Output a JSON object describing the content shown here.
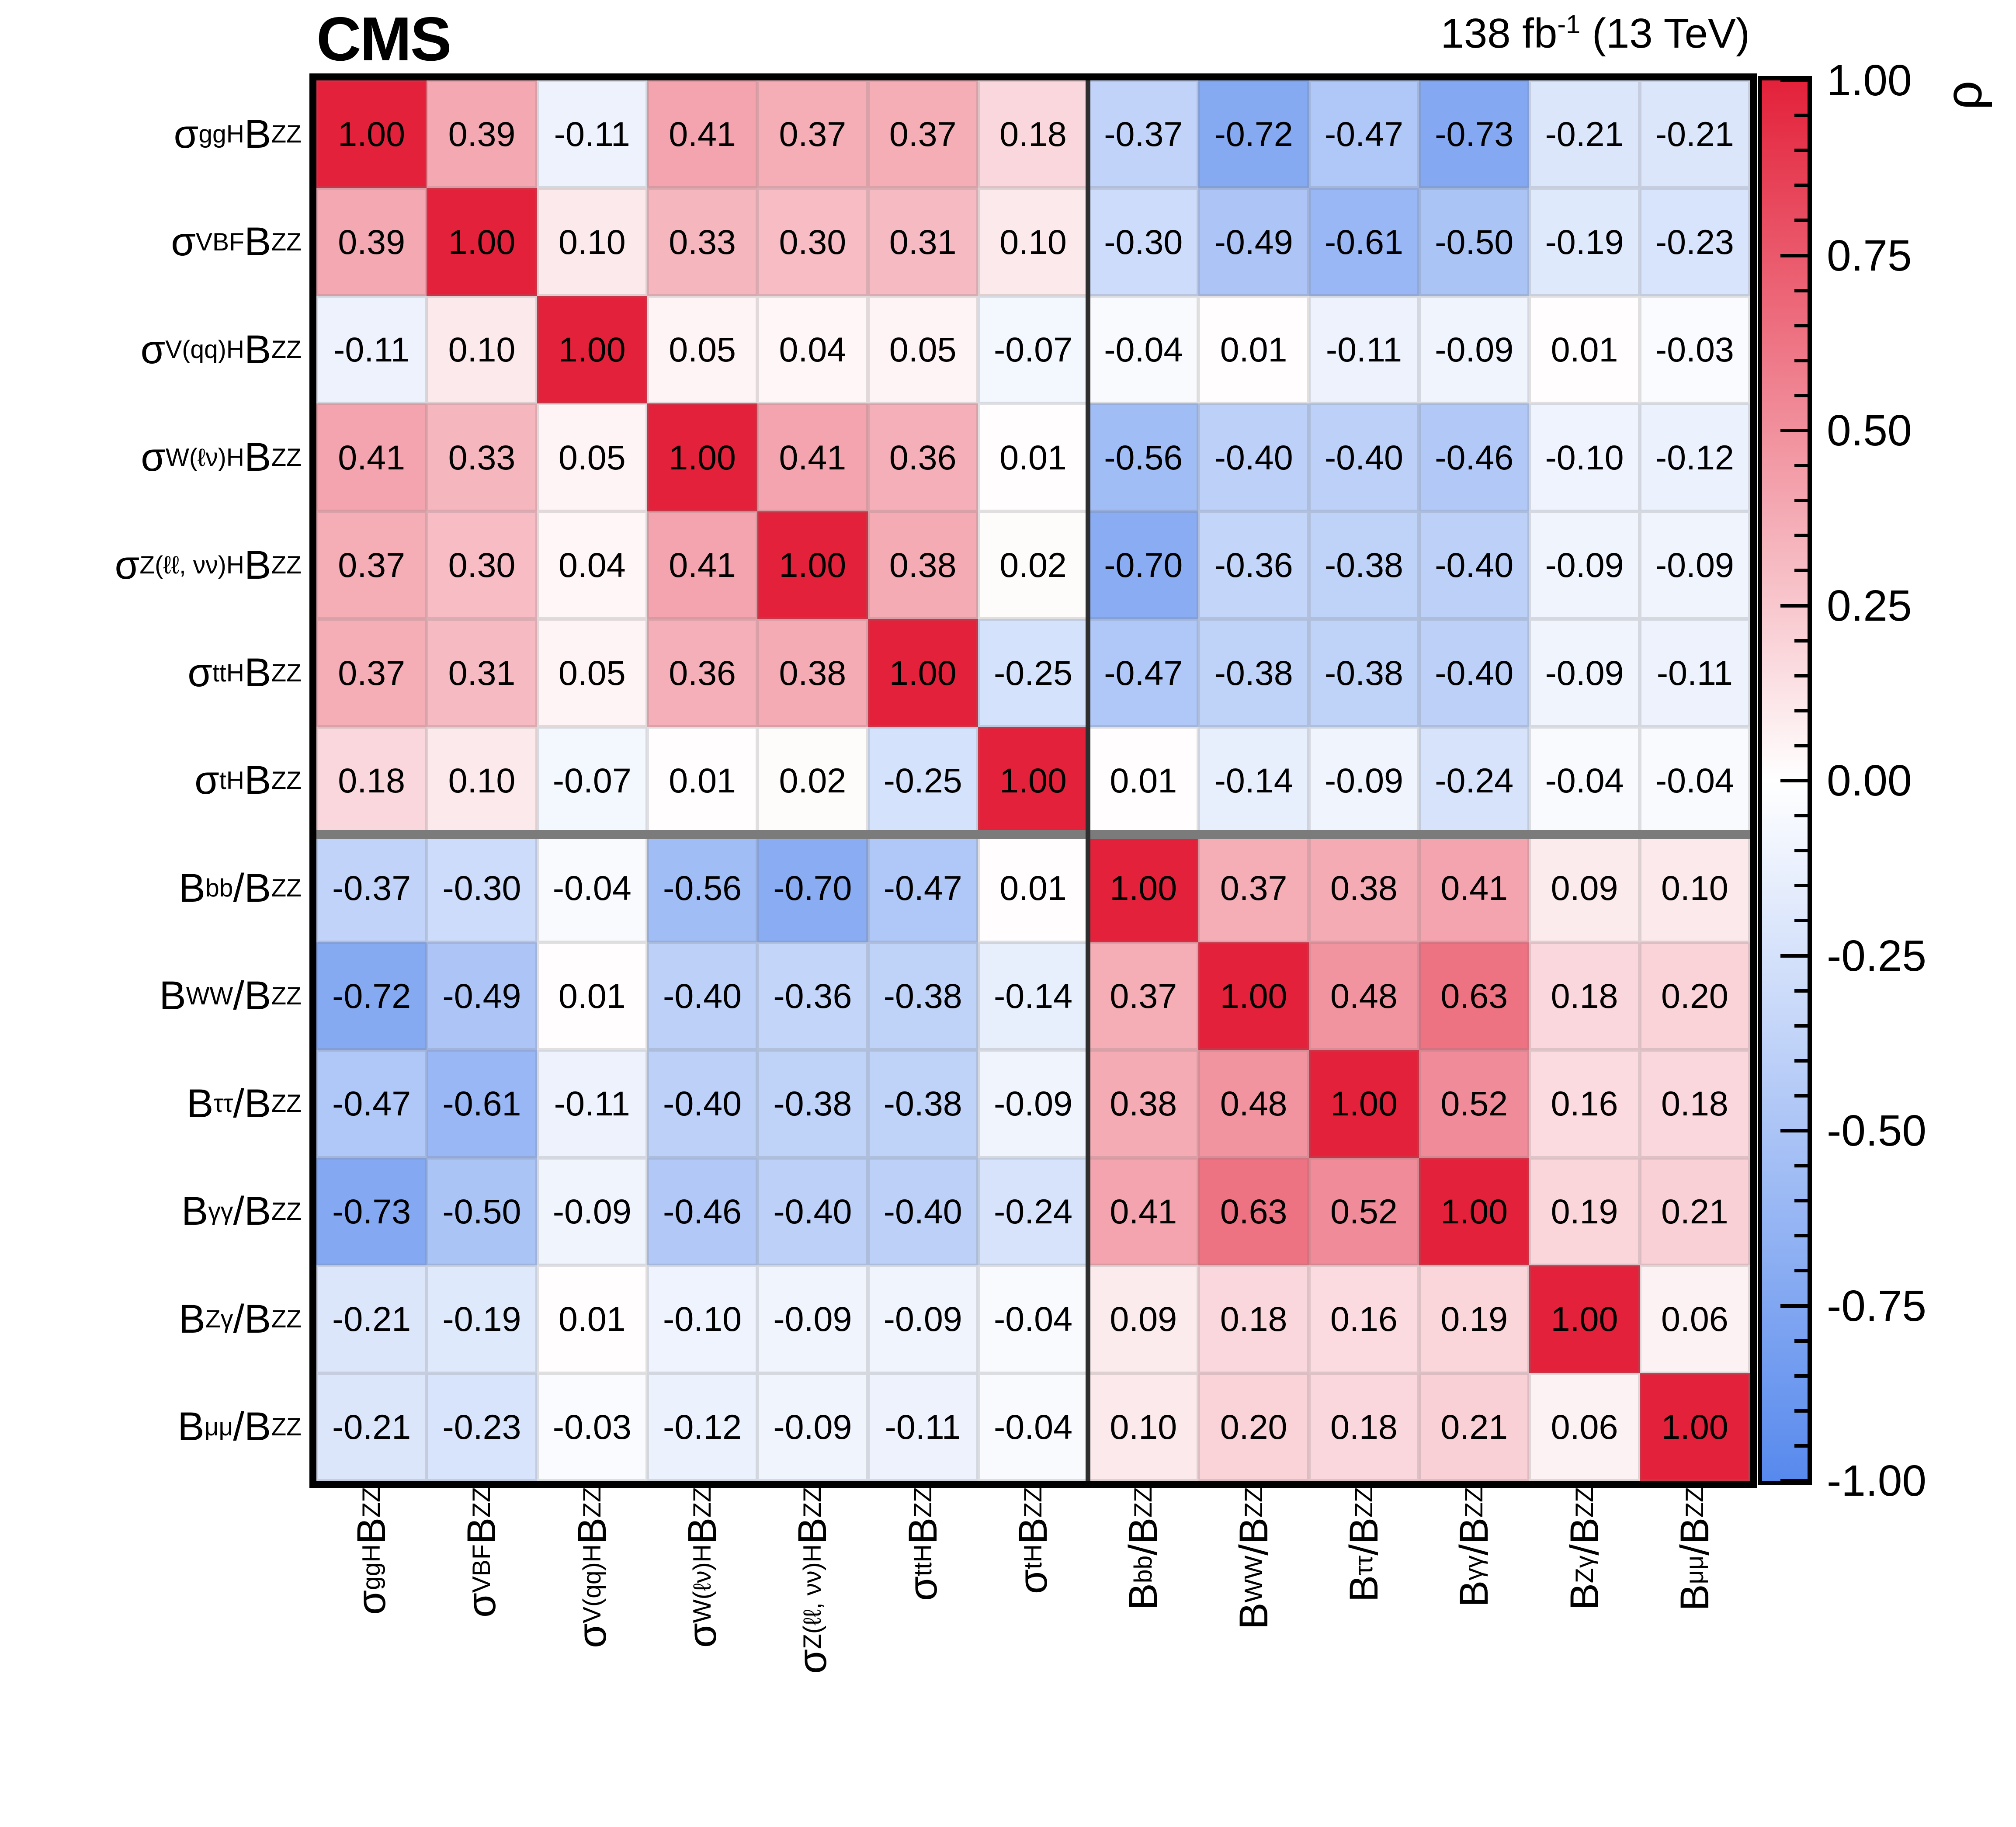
{
  "header": {
    "experiment": "CMS",
    "lumi_segments": [
      {
        "t": "138 fb"
      },
      {
        "t": "-1",
        "sup": true
      },
      {
        "t": " (13 TeV)"
      }
    ],
    "lumi_text": "138 fb^-1 (13 TeV)"
  },
  "colorbar": {
    "label": "ρ",
    "tick_labels": [
      "1.00",
      "0.75",
      "0.50",
      "0.25",
      "0.00",
      "-0.25",
      "-0.50",
      "-0.75",
      "-1.00"
    ],
    "minor_ticks_per_interval": 4,
    "colors": {
      "positive_end": "#e3213a",
      "zero": "#ffffff",
      "negative_end": "#5789ed"
    }
  },
  "chart_data": {
    "type": "heatmap",
    "title": "CMS",
    "subtitle": "138 fb^-1 (13 TeV)",
    "colorbar_label": "ρ",
    "zlim": [
      -1,
      1
    ],
    "grid": true,
    "categories": [
      "σ^{ggH}B^{ZZ}",
      "σ^{VBF}B^{ZZ}",
      "σ^{V(qq)H}B^{ZZ}",
      "σ^{W(ℓν)H}B^{ZZ}",
      "σ^{Z(ℓℓ, νν)H}B^{ZZ}",
      "σ^{ttH}B^{ZZ}",
      "σ^{tH}B^{ZZ}",
      "B^{bb}/B^{ZZ}",
      "B^{WW}/B^{ZZ}",
      "B^{ττ}/B^{ZZ}",
      "B^{γγ}/B^{ZZ}",
      "B^{Zγ}/B^{ZZ}",
      "B^{μμ}/B^{ZZ}"
    ],
    "label_segments": [
      [
        {
          "t": "σ"
        },
        {
          "t": "ggH",
          "sup": true
        },
        {
          "t": "B"
        },
        {
          "t": "ZZ",
          "sup": true
        }
      ],
      [
        {
          "t": "σ"
        },
        {
          "t": "VBF",
          "sup": true
        },
        {
          "t": "B"
        },
        {
          "t": "ZZ",
          "sup": true
        }
      ],
      [
        {
          "t": "σ"
        },
        {
          "t": "V(qq)H",
          "sup": true
        },
        {
          "t": "B"
        },
        {
          "t": "ZZ",
          "sup": true
        }
      ],
      [
        {
          "t": "σ"
        },
        {
          "t": "W(ℓν)H",
          "sup": true
        },
        {
          "t": "B"
        },
        {
          "t": "ZZ",
          "sup": true
        }
      ],
      [
        {
          "t": "σ"
        },
        {
          "t": "Z(ℓℓ, νν)H",
          "sup": true
        },
        {
          "t": "B"
        },
        {
          "t": "ZZ",
          "sup": true
        }
      ],
      [
        {
          "t": "σ"
        },
        {
          "t": "ttH",
          "sup": true
        },
        {
          "t": "B"
        },
        {
          "t": "ZZ",
          "sup": true
        }
      ],
      [
        {
          "t": "σ"
        },
        {
          "t": "tH",
          "sup": true
        },
        {
          "t": "B"
        },
        {
          "t": "ZZ",
          "sup": true
        }
      ],
      [
        {
          "t": "B"
        },
        {
          "t": "bb",
          "sup": true
        },
        {
          "t": "/B"
        },
        {
          "t": "ZZ",
          "sup": true
        }
      ],
      [
        {
          "t": "B"
        },
        {
          "t": "WW",
          "sup": true
        },
        {
          "t": "/B"
        },
        {
          "t": "ZZ",
          "sup": true
        }
      ],
      [
        {
          "t": "B"
        },
        {
          "t": "ττ",
          "sup": true
        },
        {
          "t": "/B"
        },
        {
          "t": "ZZ",
          "sup": true
        }
      ],
      [
        {
          "t": "B"
        },
        {
          "t": "γγ",
          "sup": true
        },
        {
          "t": "/B"
        },
        {
          "t": "ZZ",
          "sup": true
        }
      ],
      [
        {
          "t": "B"
        },
        {
          "t": "Zγ",
          "sup": true
        },
        {
          "t": "/B"
        },
        {
          "t": "ZZ",
          "sup": true
        }
      ],
      [
        {
          "t": "B"
        },
        {
          "t": "μμ",
          "sup": true
        },
        {
          "t": "/B"
        },
        {
          "t": "ZZ",
          "sup": true
        }
      ]
    ],
    "block_divider_after_index": 7,
    "matrix": [
      [
        1.0,
        0.39,
        -0.11,
        0.41,
        0.37,
        0.37,
        0.18,
        -0.37,
        -0.72,
        -0.47,
        -0.73,
        -0.21,
        -0.21
      ],
      [
        0.39,
        1.0,
        0.1,
        0.33,
        0.3,
        0.31,
        0.1,
        -0.3,
        -0.49,
        -0.61,
        -0.5,
        -0.19,
        -0.23
      ],
      [
        -0.11,
        0.1,
        1.0,
        0.05,
        0.04,
        0.05,
        -0.07,
        -0.04,
        0.01,
        -0.11,
        -0.09,
        0.01,
        -0.03
      ],
      [
        0.41,
        0.33,
        0.05,
        1.0,
        0.41,
        0.36,
        0.01,
        -0.56,
        -0.4,
        -0.4,
        -0.46,
        -0.1,
        -0.12
      ],
      [
        0.37,
        0.3,
        0.04,
        0.41,
        1.0,
        0.38,
        0.02,
        -0.7,
        -0.36,
        -0.38,
        -0.4,
        -0.09,
        -0.09
      ],
      [
        0.37,
        0.31,
        0.05,
        0.36,
        0.38,
        1.0,
        -0.25,
        -0.47,
        -0.38,
        -0.38,
        -0.4,
        -0.09,
        -0.11
      ],
      [
        0.18,
        0.1,
        -0.07,
        0.01,
        0.02,
        -0.25,
        1.0,
        0.01,
        -0.14,
        -0.09,
        -0.24,
        -0.04,
        -0.04
      ],
      [
        -0.37,
        -0.3,
        -0.04,
        -0.56,
        -0.7,
        -0.47,
        0.01,
        1.0,
        0.37,
        0.38,
        0.41,
        0.09,
        0.1
      ],
      [
        -0.72,
        -0.49,
        0.01,
        -0.4,
        -0.36,
        -0.38,
        -0.14,
        0.37,
        1.0,
        0.48,
        0.63,
        0.18,
        0.2
      ],
      [
        -0.47,
        -0.61,
        -0.11,
        -0.4,
        -0.38,
        -0.38,
        -0.09,
        0.38,
        0.48,
        1.0,
        0.52,
        0.16,
        0.18
      ],
      [
        -0.73,
        -0.5,
        -0.09,
        -0.46,
        -0.4,
        -0.4,
        -0.24,
        0.41,
        0.63,
        0.52,
        1.0,
        0.19,
        0.21
      ],
      [
        -0.21,
        -0.19,
        0.01,
        -0.1,
        -0.09,
        -0.09,
        -0.04,
        0.09,
        0.18,
        0.16,
        0.19,
        1.0,
        0.06
      ],
      [
        -0.21,
        -0.23,
        -0.03,
        -0.12,
        -0.09,
        -0.11,
        -0.04,
        0.1,
        0.2,
        0.18,
        0.21,
        0.06,
        1.0
      ]
    ]
  }
}
